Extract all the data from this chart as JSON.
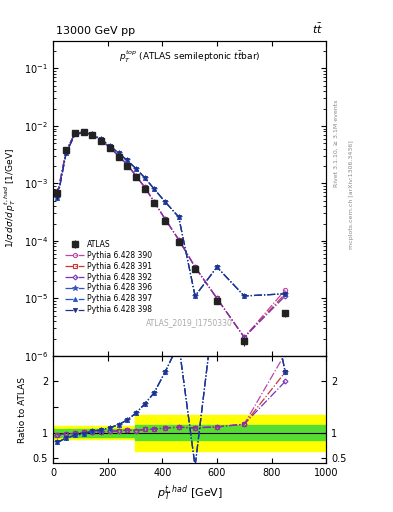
{
  "title_left": "13000 GeV pp",
  "title_right": "tt",
  "annotation_center": "p_T^{top} (ATLAS semileptonic ttbar)",
  "annotation_id": "ATLAS_2019_I1750330",
  "right_label1": "Rivet 3.1.10, ≥ 3.1M events",
  "right_label2": "mcplots.cern.ch [arXiv:1306.3436]",
  "xlim": [
    0,
    1000
  ],
  "ylim_main": [
    1e-06,
    0.3
  ],
  "ylim_ratio": [
    0.4,
    2.5
  ],
  "atlas_x": [
    16,
    48,
    80,
    112,
    144,
    176,
    208,
    240,
    272,
    304,
    336,
    370,
    410,
    460,
    520,
    600,
    700,
    850
  ],
  "atlas_y": [
    0.00068,
    0.0038,
    0.0075,
    0.0078,
    0.0069,
    0.0055,
    0.0041,
    0.0029,
    0.002,
    0.0013,
    0.0008,
    0.00045,
    0.00022,
    9.5e-05,
    3.2e-05,
    9e-06,
    1.8e-06,
    5.5e-06
  ],
  "atlas_yerr": [
    0.00015,
    0.0003,
    0.0004,
    0.0004,
    0.0003,
    0.00025,
    0.0002,
    0.00015,
    0.0001,
    7e-05,
    4e-05,
    2.5e-05,
    1.2e-05,
    5e-06,
    2e-06,
    6e-07,
    3e-07,
    8e-07
  ],
  "p390_x": [
    16,
    48,
    80,
    112,
    144,
    176,
    208,
    240,
    272,
    304,
    336,
    370,
    410,
    460,
    520,
    600,
    700,
    850
  ],
  "p390_y": [
    0.00065,
    0.0037,
    0.0074,
    0.00785,
    0.007,
    0.0056,
    0.0042,
    0.003,
    0.0021,
    0.00135,
    0.00085,
    0.00048,
    0.00024,
    0.000105,
    3.5e-05,
    1e-05,
    2.1e-06,
    1.4e-05
  ],
  "p391_y": [
    0.00065,
    0.0037,
    0.0074,
    0.00785,
    0.007,
    0.0056,
    0.0042,
    0.003,
    0.0021,
    0.00135,
    0.00085,
    0.00048,
    0.00024,
    0.000105,
    3.5e-05,
    1e-05,
    2.1e-06,
    1.2e-05
  ],
  "p392_y": [
    0.00065,
    0.0037,
    0.0074,
    0.00785,
    0.007,
    0.0056,
    0.0042,
    0.003,
    0.0021,
    0.00135,
    0.00085,
    0.00048,
    0.00024,
    0.000105,
    3.5e-05,
    1e-05,
    2.1e-06,
    1.1e-05
  ],
  "p396_y": [
    0.00055,
    0.0034,
    0.0071,
    0.0076,
    0.0071,
    0.0058,
    0.0045,
    0.00335,
    0.0025,
    0.0018,
    0.00125,
    0.0008,
    0.00048,
    0.00026,
    1.1e-05,
    3.5e-05,
    1.1e-05,
    1.2e-05
  ],
  "p397_y": [
    0.00055,
    0.0034,
    0.0071,
    0.0076,
    0.0071,
    0.0058,
    0.0045,
    0.00335,
    0.0025,
    0.0018,
    0.00125,
    0.0008,
    0.00048,
    0.00026,
    1.1e-05,
    3.5e-05,
    1.1e-05,
    1.2e-05
  ],
  "p398_y": [
    0.00055,
    0.0034,
    0.0071,
    0.0076,
    0.0071,
    0.0058,
    0.0045,
    0.00335,
    0.0025,
    0.0018,
    0.00125,
    0.0008,
    0.00048,
    0.00026,
    1.1e-05,
    3.5e-05,
    1.1e-05,
    1.2e-05
  ],
  "atlas_color": "#222222",
  "p390_color": "#bb44aa",
  "p391_color": "#cc3333",
  "p392_color": "#7733bb",
  "p396_color": "#3355bb",
  "p397_color": "#2255cc",
  "p398_color": "#223388",
  "ratio_r390": [
    0.96,
    0.97,
    0.99,
    1.01,
    1.01,
    1.02,
    1.02,
    1.03,
    1.05,
    1.04,
    1.06,
    1.07,
    1.09,
    1.11,
    1.09,
    1.17,
    1.17,
    2.55
  ],
  "ratio_r391": [
    0.96,
    0.97,
    0.99,
    1.01,
    1.01,
    1.02,
    1.02,
    1.03,
    1.05,
    1.04,
    1.06,
    1.07,
    1.09,
    1.11,
    1.09,
    1.17,
    1.17,
    2.18
  ],
  "ratio_r392": [
    0.96,
    0.97,
    0.99,
    1.01,
    1.01,
    1.02,
    1.02,
    1.03,
    1.05,
    1.04,
    1.06,
    1.07,
    1.09,
    1.11,
    1.09,
    1.17,
    1.17,
    2.0
  ],
  "ratio_r396": [
    0.81,
    0.9,
    0.95,
    0.97,
    1.03,
    1.05,
    1.1,
    1.15,
    1.25,
    1.38,
    1.56,
    1.78,
    2.18,
    2.74,
    0.34,
    3.89,
    6.11,
    2.18
  ],
  "ratio_r397": [
    0.81,
    0.9,
    0.95,
    0.97,
    1.03,
    1.05,
    1.1,
    1.15,
    1.25,
    1.38,
    1.56,
    1.78,
    2.18,
    2.74,
    0.34,
    3.89,
    6.11,
    2.18
  ],
  "ratio_r398": [
    0.81,
    0.9,
    0.95,
    0.97,
    1.03,
    1.05,
    1.1,
    1.15,
    1.25,
    1.38,
    1.56,
    1.78,
    2.18,
    2.74,
    0.34,
    3.89,
    6.11,
    2.18
  ],
  "band_yellow_x": [
    0,
    50,
    100,
    150,
    200,
    250,
    300,
    350,
    400,
    450,
    500,
    1000
  ],
  "band_yellow_lo": [
    0.88,
    0.88,
    0.88,
    0.88,
    0.88,
    0.88,
    0.88,
    0.65,
    0.65,
    0.65,
    0.65,
    0.65
  ],
  "band_yellow_hi": [
    1.12,
    1.12,
    1.12,
    1.12,
    1.12,
    1.12,
    1.12,
    1.35,
    1.35,
    1.35,
    1.35,
    1.35
  ],
  "band_green_x": [
    0,
    50,
    100,
    150,
    200,
    250,
    300,
    350,
    400,
    450,
    500,
    1000
  ],
  "band_green_lo": [
    0.92,
    0.92,
    0.92,
    0.92,
    0.92,
    0.92,
    0.92,
    0.85,
    0.85,
    0.85,
    0.85,
    0.85
  ],
  "band_green_hi": [
    1.08,
    1.08,
    1.08,
    1.08,
    1.08,
    1.08,
    1.08,
    1.15,
    1.15,
    1.15,
    1.15,
    1.15
  ]
}
